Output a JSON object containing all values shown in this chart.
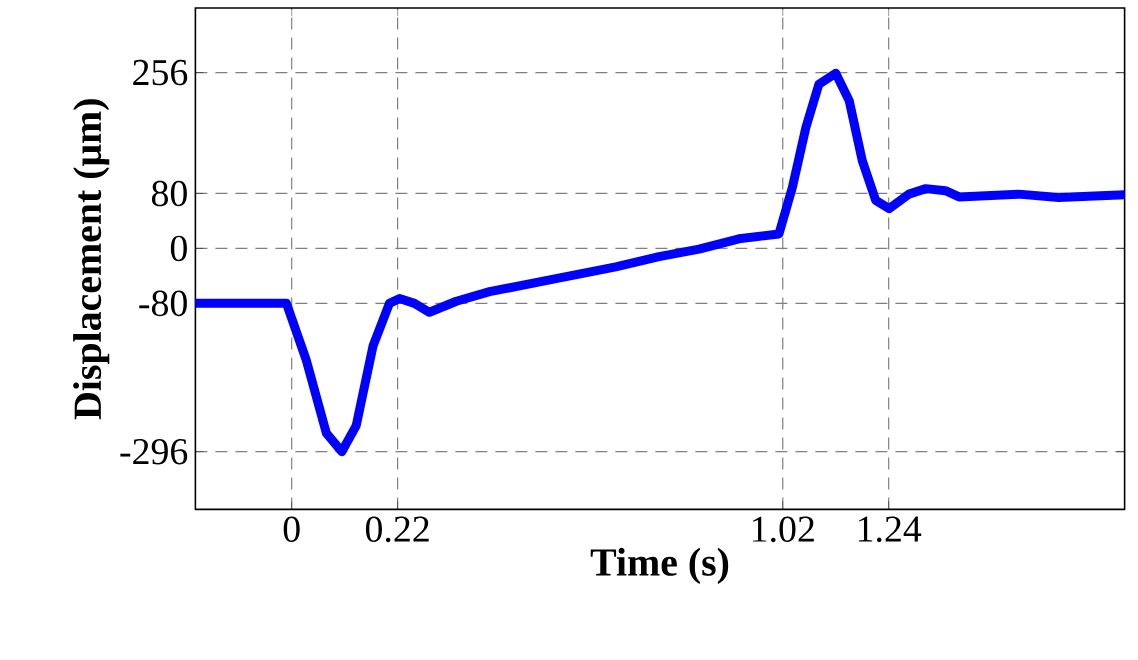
{
  "chart_data": {
    "type": "line",
    "xlabel": "Time (s)",
    "ylabel": "Displacement (μm)",
    "xlim": [
      -0.2,
      1.73
    ],
    "ylim": [
      -380,
      350
    ],
    "xticks": [
      0,
      0.22,
      1.02,
      1.24
    ],
    "yticks": [
      -296,
      -80,
      0,
      80,
      256
    ],
    "grid": true,
    "line_style": "solid",
    "marker": "none",
    "series": [
      {
        "color": "#0000ff",
        "x": [
          -0.2,
          -0.011,
          0.03,
          0.072,
          0.104,
          0.134,
          0.169,
          0.203,
          0.224,
          0.255,
          0.286,
          0.342,
          0.411,
          0.549,
          0.673,
          0.763,
          0.846,
          0.929,
          1.012,
          1.04,
          1.068,
          1.095,
          1.13,
          1.158,
          1.185,
          1.213,
          1.241,
          1.282,
          1.317,
          1.358,
          1.386,
          1.51,
          1.593,
          1.73
        ],
        "values": [
          -80,
          -80,
          -162,
          -269,
          -296,
          -258,
          -142,
          -80,
          -73,
          -80,
          -93,
          -77,
          -63,
          -44,
          -27,
          -12,
          -1,
          14,
          21,
          89,
          176,
          239,
          255,
          215,
          128,
          70,
          58,
          79,
          87,
          84,
          75,
          79,
          74,
          78
        ]
      }
    ]
  }
}
